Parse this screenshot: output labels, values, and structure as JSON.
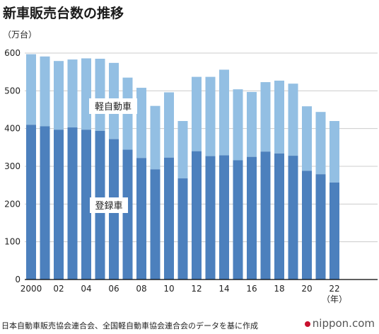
{
  "title": "新車販売台数の推移",
  "unit_label": "（万台）",
  "source": "日本自動車販売協会連合会、全国軽自動車協会連合会のデータを基に作成",
  "brand": "nippon.com",
  "colors": {
    "registered": "#4c80bd",
    "kei": "#93bfe3",
    "axis": "#000000",
    "grid": "#cccccc"
  },
  "chart_data": {
    "type": "bar",
    "stacked": true,
    "categories": [
      "2000",
      "01",
      "02",
      "03",
      "04",
      "05",
      "06",
      "07",
      "08",
      "09",
      "10",
      "11",
      "12",
      "13",
      "14",
      "15",
      "16",
      "17",
      "18",
      "19",
      "20",
      "21",
      "22"
    ],
    "x_tick_labels": [
      "2000",
      "",
      "02",
      "",
      "04",
      "",
      "06",
      "",
      "08",
      "",
      "10",
      "",
      "12",
      "",
      "14",
      "",
      "16",
      "",
      "18",
      "",
      "20",
      "",
      "22"
    ],
    "x_unit_label": "（年）",
    "ylim": [
      0,
      600
    ],
    "yticks": [
      0,
      100,
      200,
      300,
      400,
      500,
      600
    ],
    "series": [
      {
        "name": "登録車",
        "values": [
          410,
          406,
          397,
          403,
          397,
          394,
          372,
          344,
          322,
          292,
          323,
          268,
          340,
          327,
          329,
          316,
          325,
          339,
          334,
          328,
          288,
          279,
          257
        ]
      },
      {
        "name": "軽自動車",
        "values": [
          187,
          185,
          182,
          180,
          189,
          191,
          202,
          191,
          186,
          168,
          173,
          152,
          197,
          210,
          227,
          188,
          172,
          184,
          193,
          191,
          171,
          165,
          163
        ]
      }
    ]
  }
}
